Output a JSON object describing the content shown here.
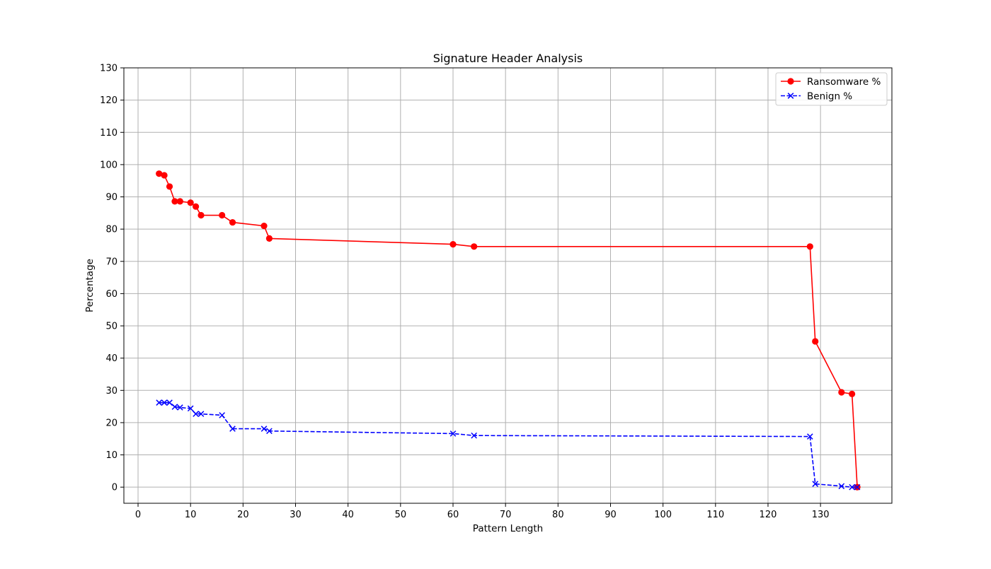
{
  "chart_data": {
    "type": "line",
    "title": "Signature Header Analysis",
    "xlabel": "Pattern Length",
    "ylabel": "Percentage",
    "xlim": [
      -2.7,
      143.6
    ],
    "ylim": [
      -5,
      130
    ],
    "xticks": [
      0,
      10,
      20,
      30,
      40,
      50,
      60,
      70,
      80,
      90,
      100,
      110,
      120,
      130
    ],
    "yticks": [
      0,
      10,
      20,
      30,
      40,
      50,
      60,
      70,
      80,
      90,
      100,
      110,
      120,
      130
    ],
    "grid": true,
    "legend_position": "top-right",
    "series": [
      {
        "name": "Ransomware %",
        "color": "#ff0000",
        "line_style": "solid",
        "marker": "circle",
        "x": [
          4,
          5,
          6,
          7,
          8,
          10,
          11,
          12,
          16,
          18,
          24,
          25,
          60,
          64,
          128,
          129,
          134,
          136,
          137
        ],
        "y": [
          97.2,
          96.7,
          93.2,
          88.6,
          88.6,
          88.2,
          87.0,
          84.3,
          84.3,
          82.1,
          81.0,
          77.1,
          75.3,
          74.6,
          74.6,
          45.2,
          29.4,
          28.9,
          0.0
        ]
      },
      {
        "name": "Benign %",
        "color": "#0000ff",
        "line_style": "dashed",
        "marker": "x",
        "x": [
          4,
          5,
          6,
          7,
          8,
          10,
          11,
          12,
          16,
          18,
          24,
          25,
          60,
          64,
          128,
          129,
          134,
          136,
          137
        ],
        "y": [
          26.2,
          26.2,
          26.2,
          24.9,
          24.7,
          24.4,
          22.7,
          22.7,
          22.3,
          18.1,
          18.1,
          17.4,
          16.6,
          16.0,
          15.7,
          1.0,
          0.3,
          0.0,
          0.0
        ]
      }
    ]
  }
}
